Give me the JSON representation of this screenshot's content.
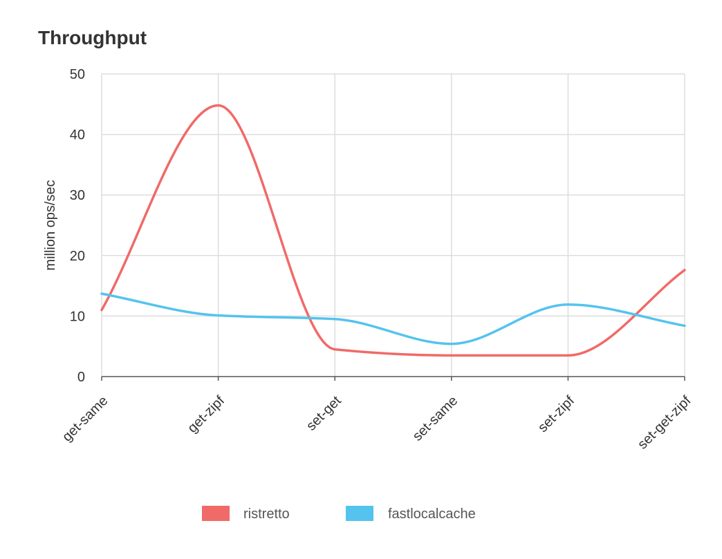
{
  "chart_data": {
    "type": "line",
    "title": "Throughput",
    "xlabel": "",
    "ylabel": "million ops/sec",
    "categories": [
      "get-same",
      "get-zipf",
      "set-get",
      "set-same",
      "set-zipf",
      "set-get-zipf"
    ],
    "ylim": [
      0,
      50
    ],
    "yticks": [
      0,
      10,
      20,
      30,
      40,
      50
    ],
    "grid": true,
    "legend_position": "bottom",
    "smooth": true,
    "series": [
      {
        "name": "ristretto",
        "color": "#f06a67",
        "values": [
          11,
          44.8,
          4.5,
          3.5,
          3.5,
          17.6
        ]
      },
      {
        "name": "fastlocalcache",
        "color": "#54c3ee",
        "values": [
          13.7,
          10.1,
          9.5,
          5.4,
          11.9,
          8.4
        ]
      }
    ]
  }
}
